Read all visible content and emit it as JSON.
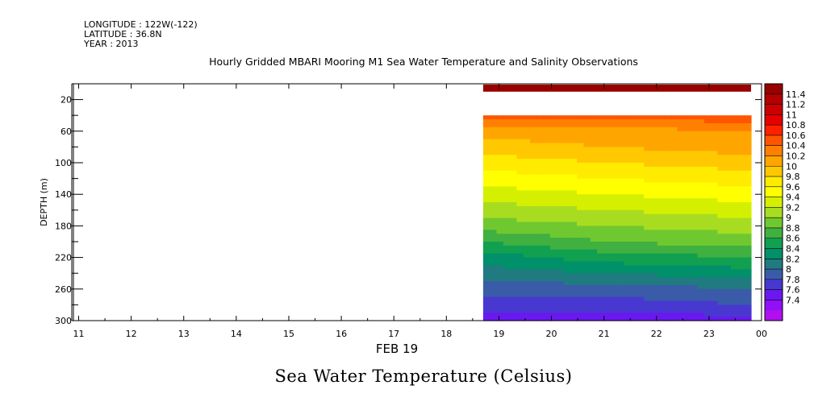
{
  "header": {
    "longitude": "LONGITUDE : 122W(-122)",
    "latitude": "LATITUDE : 36.8N",
    "year": "YEAR : 2013"
  },
  "title": "Hourly Gridded MBARI Mooring M1 Sea Water Temperature and Salinity Observations",
  "caption": "Sea Water Temperature (Celsius)",
  "chart_data": {
    "type": "heatmap",
    "title": "Hourly Gridded MBARI Mooring M1 Sea Water Temperature and Salinity Observations",
    "xlabel": "FEB 19",
    "ylabel": "DEPTH (m)",
    "x_tick_labels": [
      "11",
      "12",
      "13",
      "14",
      "15",
      "16",
      "17",
      "18",
      "19",
      "20",
      "21",
      "22",
      "23",
      "00"
    ],
    "x_ticks_hours": [
      11,
      12,
      13,
      14,
      15,
      16,
      17,
      18,
      19,
      20,
      21,
      22,
      23,
      24
    ],
    "xlim_hours": [
      10.9,
      24.0
    ],
    "y_tick_labels": [
      "20",
      "60",
      "100",
      "140",
      "180",
      "220",
      "260",
      "300"
    ],
    "y_ticks": [
      20,
      60,
      100,
      140,
      180,
      220,
      260,
      300
    ],
    "ylim": [
      300,
      0
    ],
    "y_reversed": true,
    "data_start_hour": 18.7,
    "data_end_hour": 23.8,
    "surface_band": {
      "depth_range": [
        1,
        10
      ],
      "temperature": 11.4
    },
    "gap_depth_range": [
      10,
      40
    ],
    "profiles": [
      {
        "hour": 18.7,
        "depths": [
          40,
          50,
          60,
          80,
          100,
          120,
          140,
          160,
          180,
          200,
          220,
          240,
          260,
          280,
          300
        ],
        "temps": [
          10.5,
          10.3,
          10.1,
          9.9,
          9.7,
          9.5,
          9.3,
          9.1,
          8.9,
          8.6,
          8.3,
          8.1,
          7.9,
          7.7,
          7.5
        ]
      },
      {
        "hour": 21.0,
        "depths": [
          40,
          50,
          60,
          80,
          100,
          120,
          140,
          160,
          180,
          200,
          220,
          240,
          260,
          280,
          300
        ],
        "temps": [
          10.5,
          10.3,
          10.1,
          10.0,
          9.8,
          9.6,
          9.4,
          9.2,
          9.0,
          8.8,
          8.5,
          8.2,
          7.9,
          7.7,
          7.5
        ]
      },
      {
        "hour": 23.8,
        "depths": [
          40,
          50,
          60,
          80,
          100,
          120,
          140,
          160,
          180,
          200,
          220,
          240,
          260,
          280,
          300
        ],
        "temps": [
          10.5,
          10.4,
          10.2,
          10.1,
          9.9,
          9.7,
          9.5,
          9.3,
          9.1,
          8.9,
          8.6,
          8.3,
          8.0,
          7.8,
          7.5
        ]
      }
    ],
    "colorbar": {
      "labels": [
        "11.4",
        "11.2",
        "11",
        "10.8",
        "10.6",
        "10.4",
        "10.2",
        "10",
        "9.8",
        "9.6",
        "9.4",
        "9.2",
        "9",
        "8.8",
        "8.6",
        "8.4",
        "8.2",
        "8",
        "7.8",
        "7.6",
        "7.4"
      ],
      "levels": [
        11.4,
        11.2,
        11.0,
        10.8,
        10.6,
        10.4,
        10.2,
        10.0,
        9.8,
        9.6,
        9.4,
        9.2,
        9.0,
        8.8,
        8.6,
        8.4,
        8.2,
        8.0,
        7.8,
        7.6,
        7.4
      ],
      "colors": [
        "#990000",
        "#b30000",
        "#cc0000",
        "#e60000",
        "#ff2000",
        "#ff5500",
        "#ff8000",
        "#ffa500",
        "#ffc800",
        "#ffeb00",
        "#ffff00",
        "#d4f000",
        "#a8dc20",
        "#70c830",
        "#40b040",
        "#10a050",
        "#00906a",
        "#207b80",
        "#3a5ca8",
        "#4838d0",
        "#6a18f0",
        "#9010f8",
        "#b010f0"
      ]
    }
  }
}
